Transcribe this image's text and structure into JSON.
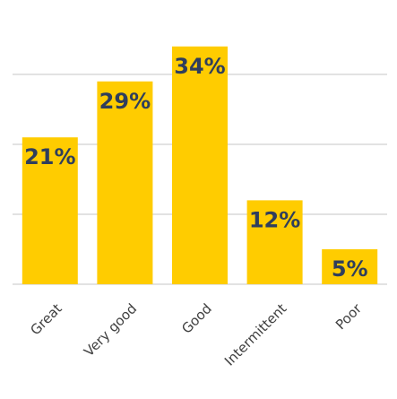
{
  "chart_data": {
    "type": "bar",
    "categories": [
      "Great",
      "Very good",
      "Good",
      "Intermittent",
      "Poor"
    ],
    "values": [
      21,
      29,
      34,
      12,
      5
    ],
    "value_labels": [
      "21%",
      "29%",
      "34%",
      "12%",
      "5%"
    ],
    "ylim": [
      0,
      40
    ],
    "gridlines": [
      0,
      10,
      20,
      30
    ],
    "grid": true,
    "legend": "none",
    "title": "",
    "xlabel": "",
    "ylabel": "",
    "colors": {
      "bar": "#FFCC00",
      "label": "#2F3E5C",
      "grid": "#D9D9D9",
      "tick": "#404040"
    }
  }
}
